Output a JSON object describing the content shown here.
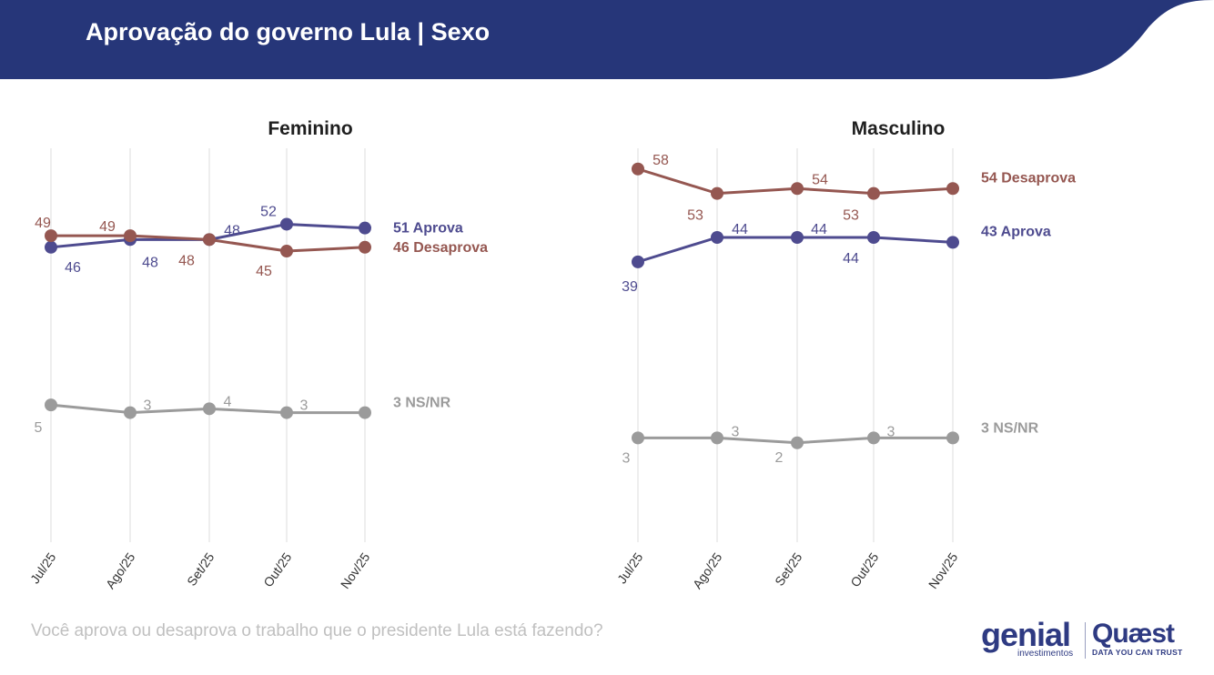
{
  "header": {
    "title": "Aprovação do governo Lula | Sexo",
    "band_color": "#263679"
  },
  "footer": {
    "question": "Você aprova ou desaprova o trabalho que o presidente Lula está fazendo?"
  },
  "logos": {
    "genial_word": "genial",
    "genial_sub": "investimentos",
    "quaest_word": "Quæst",
    "quaest_sub": "DATA YOU CAN TRUST"
  },
  "colors": {
    "aprova": "#4e4b8f",
    "desaprova": "#955751",
    "nsnr": "#9b9b9b",
    "grid": "#e3e3e3"
  },
  "chart_data": [
    {
      "type": "line",
      "title": "Feminino",
      "categories": [
        "Jul/25",
        "Ago/25",
        "Set/25",
        "Out/25",
        "Nov/25"
      ],
      "series": [
        {
          "name": "Aprova",
          "key": "aprova",
          "values": [
            46,
            48,
            48,
            52,
            51
          ],
          "end_label": "51 Aprova"
        },
        {
          "name": "Desaprova",
          "key": "desaprova",
          "values": [
            49,
            49,
            48,
            45,
            46
          ],
          "end_label": "46 Desaprova"
        },
        {
          "name": "NS/NR",
          "key": "nsnr",
          "values": [
            5,
            3,
            4,
            3,
            3
          ],
          "end_label": "3 NS/NR"
        }
      ],
      "grid": "vertical"
    },
    {
      "type": "line",
      "title": "Masculino",
      "categories": [
        "Jul/25",
        "Ago/25",
        "Set/25",
        "Out/25",
        "Nov/25"
      ],
      "series": [
        {
          "name": "Aprova",
          "key": "aprova",
          "values": [
            39,
            44,
            44,
            44,
            43
          ],
          "end_label": "43 Aprova"
        },
        {
          "name": "Desaprova",
          "key": "desaprova",
          "values": [
            58,
            53,
            54,
            53,
            54
          ],
          "end_label": "54 Desaprova"
        },
        {
          "name": "NS/NR",
          "key": "nsnr",
          "values": [
            3,
            3,
            2,
            3,
            3
          ],
          "end_label": "3 NS/NR"
        }
      ],
      "grid": "vertical"
    }
  ]
}
